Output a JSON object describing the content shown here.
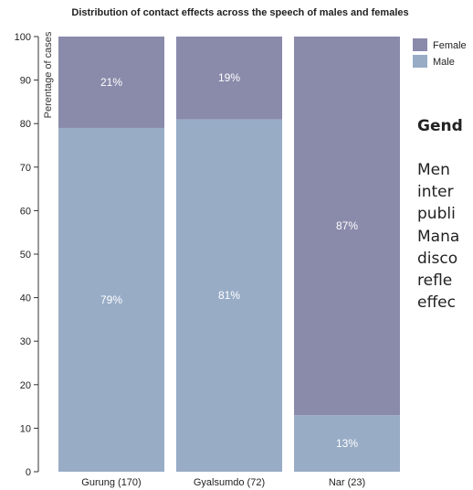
{
  "chart_data": {
    "type": "bar",
    "stacked": true,
    "title": "Distribution of contact effects across the speech of males and females",
    "ylabel": "Perentage of cases",
    "xlabel": "",
    "ylim": [
      0,
      100
    ],
    "yticks": [
      0,
      10,
      20,
      30,
      40,
      50,
      60,
      70,
      80,
      90,
      100
    ],
    "categories": [
      "Gurung (170)",
      "Gyalsumdo (72)",
      "Nar (23)"
    ],
    "series": [
      {
        "name": "Male",
        "color": "#98acc6",
        "values": [
          79,
          81,
          13
        ],
        "labels": [
          "79%",
          "81%",
          "13%"
        ]
      },
      {
        "name": "Female",
        "color": "#8a8aab",
        "values": [
          21,
          19,
          87
        ],
        "labels": [
          "21%",
          "19%",
          "87%"
        ]
      }
    ],
    "legend": {
      "placement": "top-right",
      "entries": [
        "Female",
        "Male"
      ]
    },
    "grid": false
  },
  "side_text": {
    "heading": "Gend",
    "lines": [
      "Men",
      "inter",
      "publi",
      "Mana",
      "disco",
      "refle",
      "effec"
    ]
  }
}
